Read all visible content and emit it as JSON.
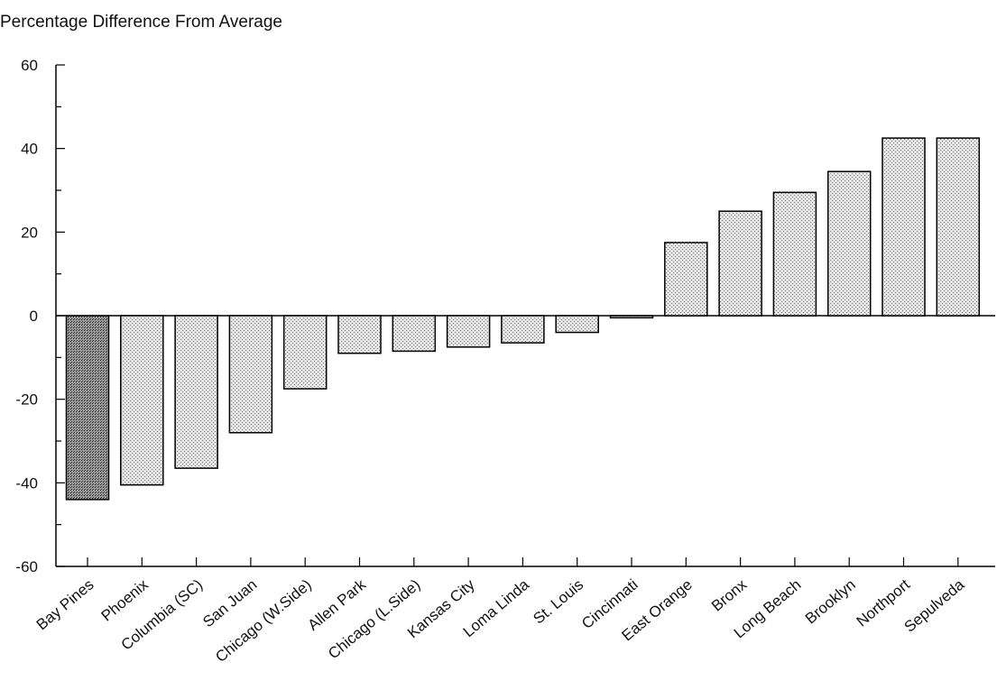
{
  "chart_data": {
    "type": "bar",
    "title": "Percentage Difference From Average",
    "xlabel": "",
    "ylabel": "",
    "ylim": [
      -60,
      60
    ],
    "yticks": [
      -60,
      -40,
      -20,
      0,
      20,
      40,
      60
    ],
    "categories": [
      "Bay Pines",
      "Phoenix",
      "Columbia (SC)",
      "San Juan",
      "Chicago (W.Side)",
      "Allen Park",
      "Chicago (L.Side)",
      "Kansas City",
      "Loma Linda",
      "St. Louis",
      "Cincinnati",
      "East Orange",
      "Bronx",
      "Long Beach",
      "Brooklyn",
      "Northport",
      "Sepulveda"
    ],
    "values": [
      -44,
      -40.5,
      -36.5,
      -28,
      -17.5,
      -9,
      -8.5,
      -7.5,
      -6.5,
      -4,
      -0.5,
      17.5,
      25,
      29.5,
      34.5,
      42.5,
      42.5
    ],
    "highlight_index": 0,
    "colors": {
      "bar_fill": "#d6d6d6",
      "highlight_fill": "#8a8a8a",
      "stroke": "#000000"
    },
    "grid": false
  }
}
